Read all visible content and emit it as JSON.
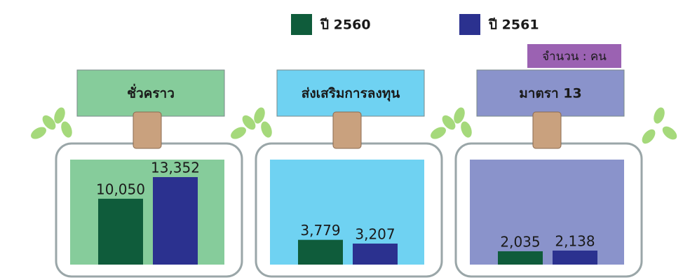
{
  "chart_data": {
    "type": "bar",
    "categories": [
      "ชั่วคราว",
      "ส่งเสริมการลงทุน",
      "มาตรา 13"
    ],
    "series": [
      {
        "name": "ปี 2560",
        "color": "#0f5c3b",
        "values": [
          10050,
          3779,
          2035
        ],
        "value_labels": [
          "10,050",
          "3,779",
          "2,035"
        ]
      },
      {
        "name": "ปี 2561",
        "color": "#2b318f",
        "values": [
          13352,
          3207,
          2138
        ],
        "value_labels": [
          "13,352",
          "3,207",
          "2,138"
        ]
      }
    ],
    "unit_label": "จำนวน : คน",
    "panel_colors": [
      "#86cc9b",
      "#6fd2f2",
      "#8a93cb"
    ]
  }
}
